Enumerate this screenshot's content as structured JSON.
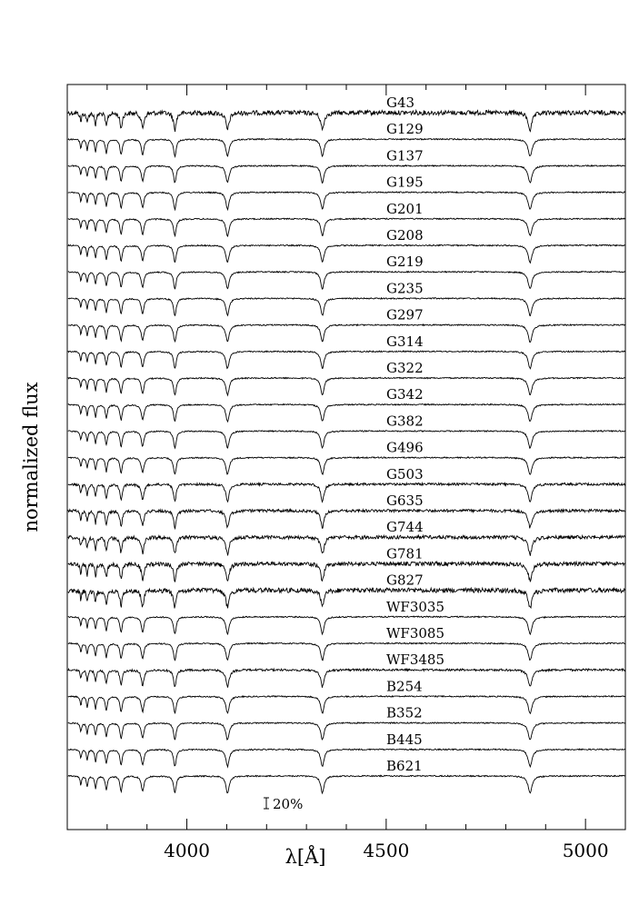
{
  "chart_data": {
    "type": "line",
    "xlabel": "λ[Å]",
    "ylabel": "normalized flux",
    "xlim": [
      3700,
      5100
    ],
    "x_ticks": [
      4000,
      4500,
      5000
    ],
    "x_tick_labels": [
      "4000",
      "4500",
      "5000"
    ],
    "scale_bar_label": "20%",
    "series": [
      {
        "name": "G43"
      },
      {
        "name": "G129"
      },
      {
        "name": "G137"
      },
      {
        "name": "G195"
      },
      {
        "name": "G201"
      },
      {
        "name": "G208"
      },
      {
        "name": "G219"
      },
      {
        "name": "G235"
      },
      {
        "name": "G297"
      },
      {
        "name": "G314"
      },
      {
        "name": "G322"
      },
      {
        "name": "G342"
      },
      {
        "name": "G382"
      },
      {
        "name": "G496"
      },
      {
        "name": "G503"
      },
      {
        "name": "G635"
      },
      {
        "name": "G744"
      },
      {
        "name": "G781"
      },
      {
        "name": "G827"
      },
      {
        "name": "WF3035"
      },
      {
        "name": "WF3085"
      },
      {
        "name": "WF3485"
      },
      {
        "name": "B254"
      },
      {
        "name": "B352"
      },
      {
        "name": "B445"
      },
      {
        "name": "B621"
      }
    ],
    "balmer_lines": [
      {
        "wavelength": 4861,
        "depth": 0.55,
        "width": 6
      },
      {
        "wavelength": 4340,
        "depth": 0.55,
        "width": 5
      },
      {
        "wavelength": 4102,
        "depth": 0.55,
        "width": 5
      },
      {
        "wavelength": 3970,
        "depth": 0.55,
        "width": 4
      },
      {
        "wavelength": 3889,
        "depth": 0.5,
        "width": 4
      },
      {
        "wavelength": 3835,
        "depth": 0.5,
        "width": 3.5
      },
      {
        "wavelength": 3798,
        "depth": 0.45,
        "width": 3
      },
      {
        "wavelength": 3771,
        "depth": 0.4,
        "width": 2.5
      },
      {
        "wavelength": 3750,
        "depth": 0.35,
        "width": 2.2
      },
      {
        "wavelength": 3734,
        "depth": 0.3,
        "width": 2
      }
    ],
    "grid": false
  }
}
